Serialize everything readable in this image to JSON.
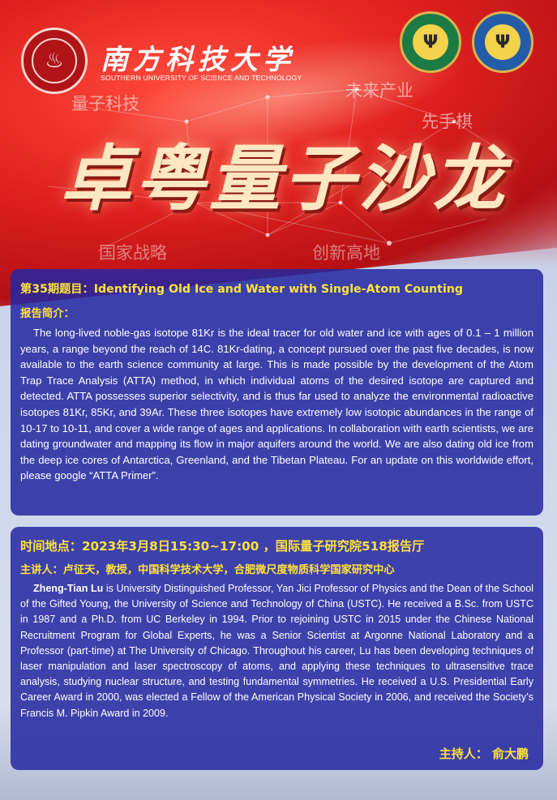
{
  "header": {
    "university_cn": "南方科技大学",
    "university_en": "SOUTHERN UNIVERSITY OF SCIENCE AND TECHNOLOGY",
    "deco_words": [
      "量子科技",
      "未来产业",
      "先手棋",
      "国家战略",
      "创新高地"
    ],
    "event_title": "卓粤量子沙龙"
  },
  "lecture": {
    "title_prefix": "第35期题目：",
    "title": "Identifying Old Ice and Water with Single-Atom Counting",
    "abstract_label": "报告简介：",
    "abstract": "The long-lived noble-gas isotope 81Kr is the ideal tracer for old water and ice with ages of 0.1 – 1 million years, a range beyond the reach of 14C.  81Kr-dating, a concept pursued over the past five decades, is now available to the earth science community at large.  This is made possible by the development of the Atom Trap Trace Analysis (ATTA) method, in which individual atoms of the desired isotope are captured and detected.  ATTA possesses superior selectivity, and is thus far used to analyze the environmental radioactive isotopes 81Kr, 85Kr, and 39Ar.  These three isotopes have extremely low isotopic abundances in the range of 10-17 to 10-11, and cover a wide range of ages and applications.  In collaboration with earth scientists, we are dating groundwater and mapping its flow in major aquifers around the world.  We are also dating old ice from the deep ice cores of Antarctica, Greenland, and the Tibetan Plateau.  For an update on this worldwide effort, please google “ATTA Primer”."
  },
  "details": {
    "time_place": "时间地点：2023年3月8日15:30~17:00 ，国际量子研究院518报告厅",
    "speaker_line": "主讲人：卢征天，教授，中国科学技术大学，合肥微尺度物质科学国家研究中心",
    "speaker_name": "Zheng-Tian Lu",
    "bio": " is University Distinguished Professor, Yan Jici Professor of Physics and the Dean of the School of the Gifted Young, the University of Science and Technology of China (USTC). He received a B.Sc. from USTC in 1987 and a Ph.D. from UC Berkeley in 1994. Prior to rejoining USTC in 2015 under the Chinese National Recruitment Program for Global Experts, he was a Senior Scientist at Argonne National Laboratory and a Professor (part-time) at The University of Chicago. Throughout his career, Lu has been developing techniques of laser manipulation and laser spectroscopy of atoms, and applying these techniques to ultrasensitive trace analysis, studying nuclear structure, and testing fundamental symmetries. He received a U.S. Presidential Early Career Award in 2000, was elected a Fellow of the American Physical Society in 2006, and received the Society’s Francis M. Pipkin Award in 2009.",
    "host": "主持人： 俞大鹏"
  },
  "colors": {
    "accent_yellow": "#ffe23a",
    "panel_blue": "#2428a0",
    "flag_red": "#d81e22"
  }
}
